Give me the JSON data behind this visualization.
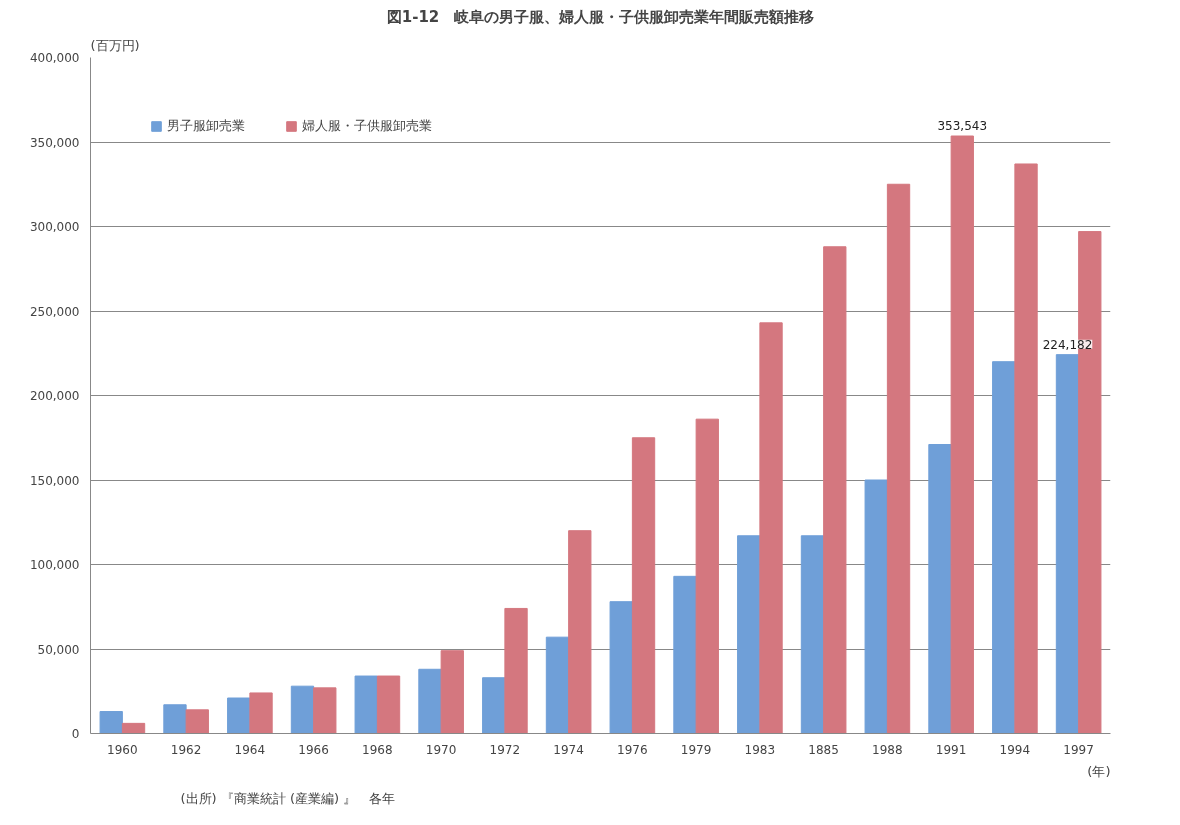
{
  "chart_data": {
    "type": "bar",
    "title": "図1-12　岐阜の男子服、婦人服・子供服卸売業年間販売額推移",
    "ylabel": "(百万円)",
    "xlabel": "(年)",
    "annotations": [
      "(出所) 『商業統計 (産業編) 』　各年"
    ],
    "categories": [
      "1960",
      "1962",
      "1964",
      "1966",
      "1968",
      "1970",
      "1972",
      "1974",
      "1976",
      "1979",
      "1983",
      "1885",
      "1988",
      "1991",
      "1994",
      "1997"
    ],
    "series": [
      {
        "name": "男子服卸売業",
        "color": "#6f9fd8",
        "values": [
          13000,
          17000,
          21000,
          28000,
          34000,
          38000,
          33000,
          57000,
          78000,
          93000,
          117000,
          117000,
          150000,
          171000,
          220000,
          224182
        ],
        "value_labels": [
          null,
          null,
          null,
          null,
          null,
          null,
          null,
          null,
          null,
          null,
          null,
          null,
          null,
          null,
          null,
          "224,182"
        ]
      },
      {
        "name": "婦人服・子供服卸売業",
        "color": "#d4777f",
        "values": [
          6000,
          14000,
          24000,
          27000,
          34000,
          49000,
          74000,
          120000,
          175000,
          186000,
          243000,
          288000,
          325000,
          353543,
          337000,
          297000
        ],
        "value_labels": [
          null,
          null,
          null,
          null,
          null,
          null,
          null,
          null,
          null,
          null,
          null,
          null,
          null,
          "353,543",
          null,
          null
        ]
      }
    ],
    "ylim": [
      0,
      400000
    ],
    "yticks": [
      0,
      {
        "value": 50000,
        "label": "50,000"
      },
      {
        "value": 100000,
        "label": "100,000"
      },
      {
        "value": 150000,
        "label": "150,000"
      },
      {
        "value": 200000,
        "label": "200,000"
      },
      {
        "value": 250000,
        "label": "250,000"
      },
      {
        "value": 300000,
        "label": "300,000"
      },
      {
        "value": 350000,
        "label": "350,000"
      },
      {
        "value": 400000,
        "label": "400,000"
      }
    ],
    "grid": "y",
    "legend": "top left"
  }
}
